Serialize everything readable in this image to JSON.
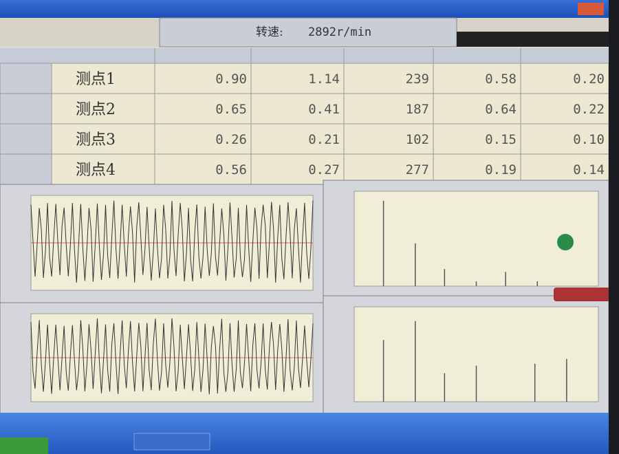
{
  "speed": {
    "label": "转速:",
    "value": "2892r/min"
  },
  "table": {
    "rows": [
      {
        "label": "测点1",
        "cells": [
          "0.90",
          "1.14",
          "239",
          "0.58",
          "0.20"
        ]
      },
      {
        "label": "测点2",
        "cells": [
          "0.65",
          "0.41",
          "187",
          "0.64",
          "0.22"
        ]
      },
      {
        "label": "测点3",
        "cells": [
          "0.26",
          "0.21",
          "102",
          "0.15",
          "0.10"
        ]
      },
      {
        "label": "测点4",
        "cells": [
          "0.56",
          "0.27",
          "277",
          "0.19",
          "0.14"
        ]
      }
    ]
  }
}
